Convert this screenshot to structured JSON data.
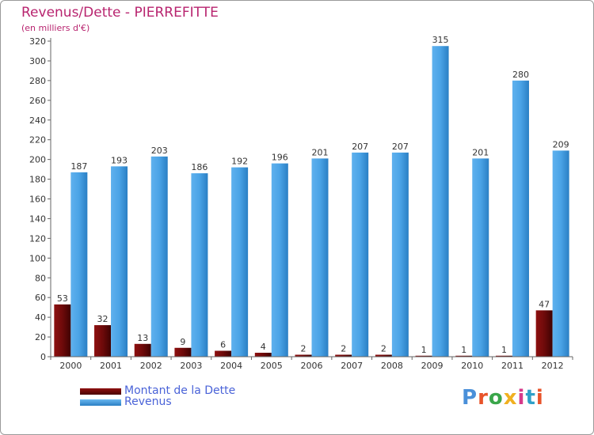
{
  "chart_data": {
    "type": "bar",
    "title": "Revenus/Dette - PIERREFITTE",
    "subtitle": "(en milliers d'€)",
    "categories": [
      "2000",
      "2001",
      "2002",
      "2003",
      "2004",
      "2005",
      "2006",
      "2007",
      "2008",
      "2009",
      "2010",
      "2011",
      "2012"
    ],
    "series": [
      {
        "name": "Montant de la Dette",
        "color": "#6e0a0a",
        "values": [
          53,
          32,
          13,
          9,
          6,
          4,
          2,
          2,
          2,
          1,
          1,
          1,
          47
        ]
      },
      {
        "name": "Revenus",
        "color": "#4aa3e6",
        "values": [
          187,
          193,
          203,
          186,
          192,
          196,
          201,
          207,
          207,
          315,
          201,
          280,
          209
        ]
      }
    ],
    "ylim": [
      0,
      320
    ],
    "yticks": [
      0,
      20,
      40,
      60,
      80,
      100,
      120,
      140,
      160,
      180,
      200,
      220,
      240,
      260,
      280,
      300,
      320
    ],
    "grid": false,
    "legend_position": "bottom-left"
  },
  "logo": {
    "text": "Proxiti"
  }
}
